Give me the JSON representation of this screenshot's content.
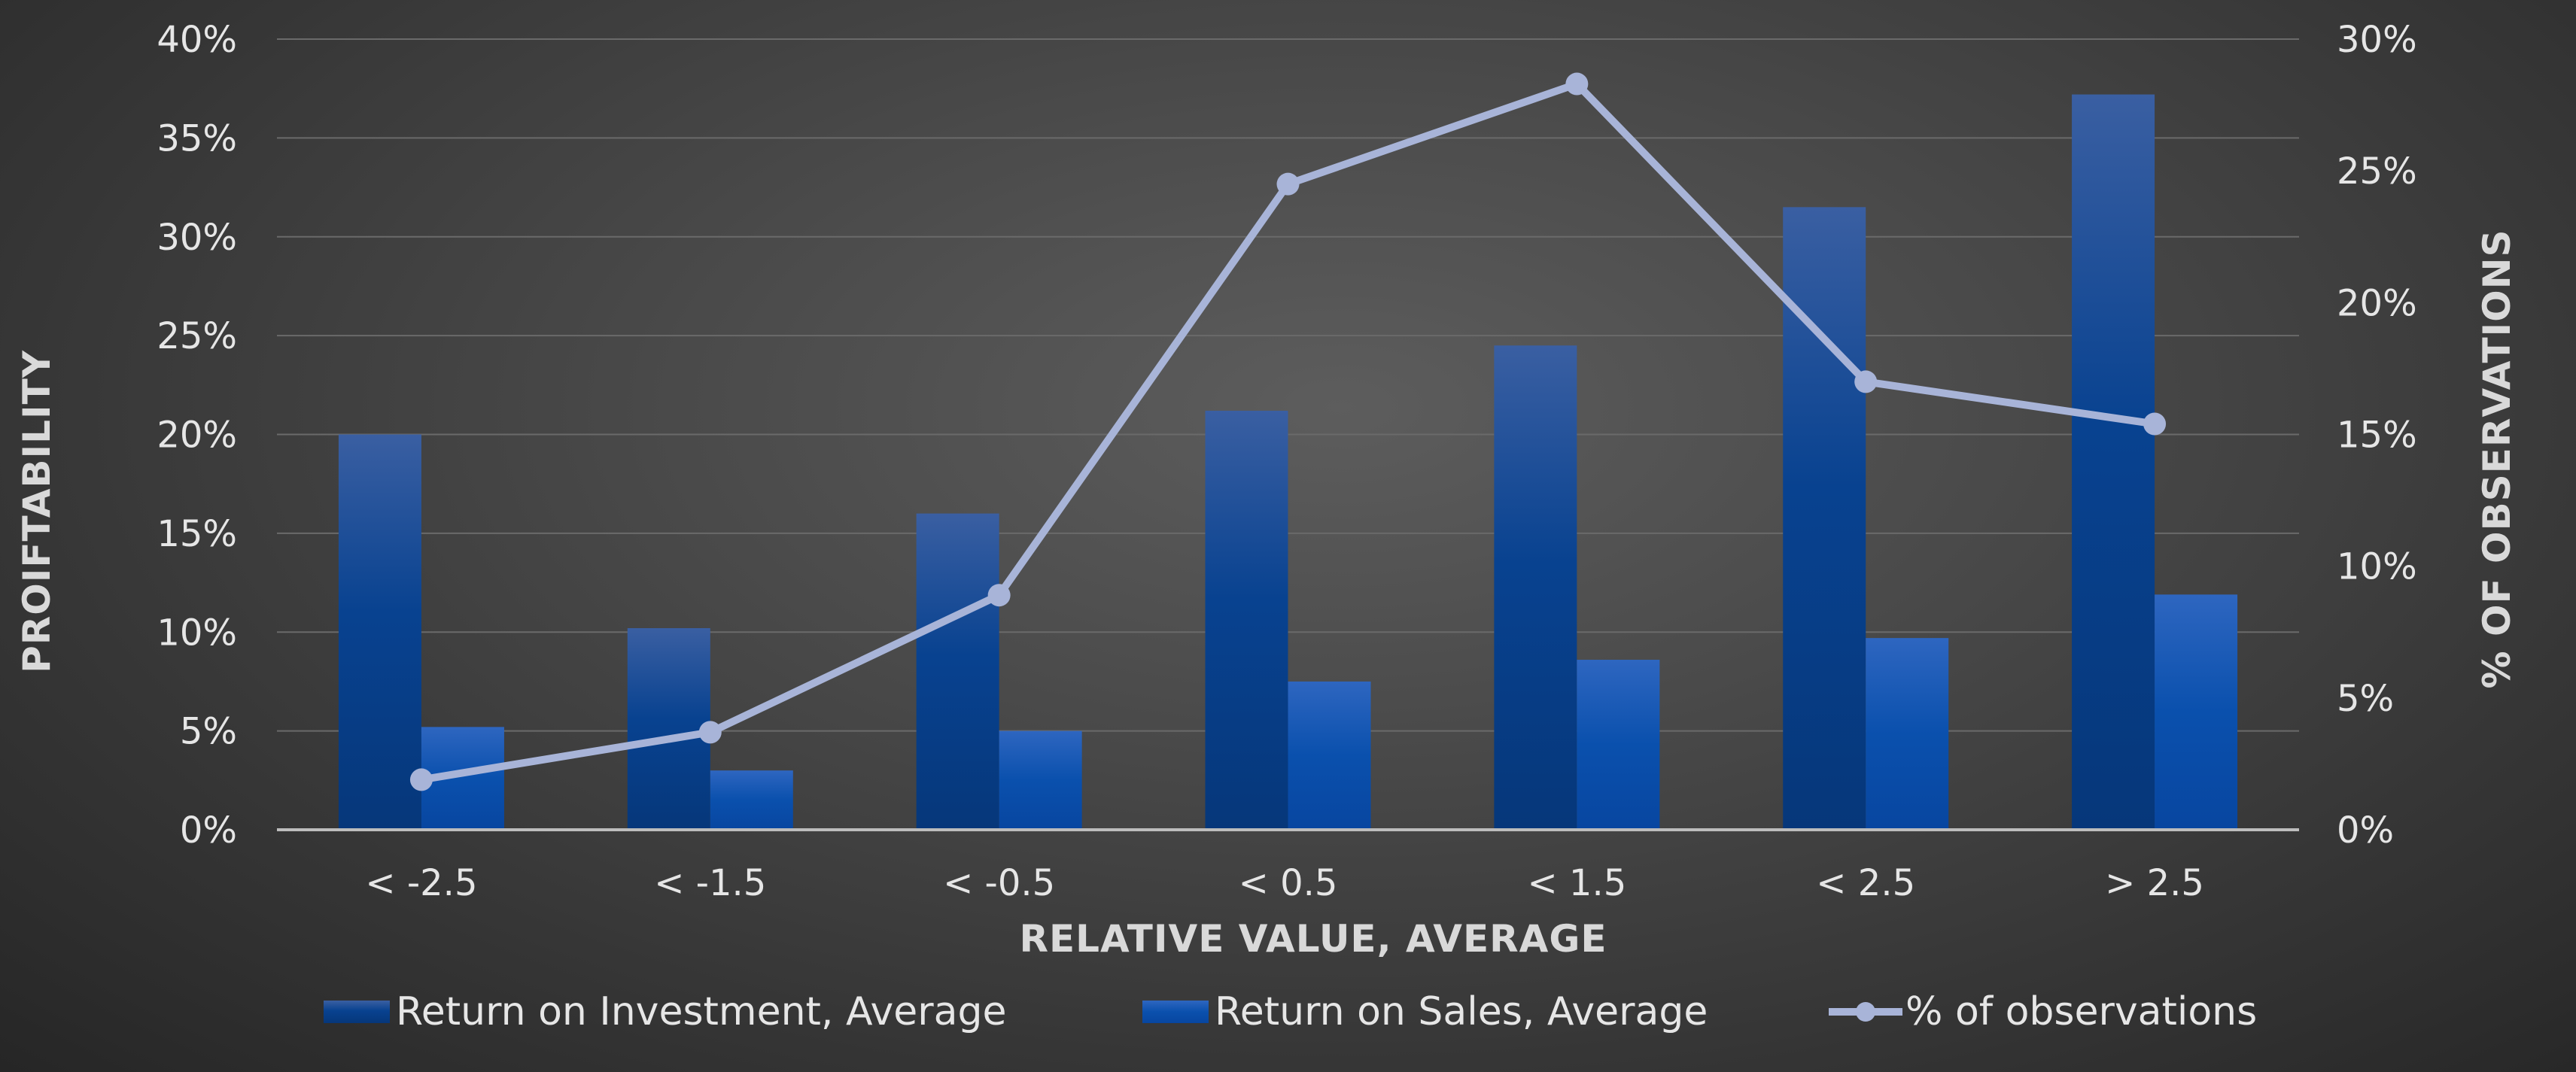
{
  "chart_data": {
    "type": "bar",
    "categories": [
      "< -2.5",
      "< -1.5",
      "< -0.5",
      "< 0.5",
      "< 1.5",
      "< 2.5",
      "> 2.5"
    ],
    "series": [
      {
        "name": "Return on Investment, Average",
        "type": "bar",
        "axis": "left",
        "values": [
          20.0,
          10.2,
          16.0,
          21.2,
          24.5,
          31.5,
          37.2
        ]
      },
      {
        "name": "Return on Sales, Average",
        "type": "bar",
        "axis": "left",
        "values": [
          5.2,
          3.0,
          5.0,
          7.5,
          8.6,
          9.7,
          11.9
        ]
      },
      {
        "name": "% of observations",
        "type": "line",
        "axis": "right",
        "values": [
          1.9,
          3.7,
          8.9,
          24.5,
          28.3,
          17.0,
          15.4
        ]
      }
    ],
    "xlabel": "RELATIVE VALUE, AVERAGE",
    "ylabel": "PROIFTABILITY",
    "y2label": "% OF OBSERVATIONS",
    "ylim": [
      0,
      40
    ],
    "y2lim": [
      0,
      30
    ],
    "yticks": [
      "0%",
      "5%",
      "10%",
      "15%",
      "20%",
      "25%",
      "30%",
      "35%",
      "40%"
    ],
    "y2ticks": [
      "0%",
      "5%",
      "10%",
      "15%",
      "20%",
      "25%",
      "30%"
    ],
    "yticks_values": [
      0,
      5,
      10,
      15,
      20,
      25,
      30,
      35,
      40
    ],
    "y2ticks_values": [
      0,
      5,
      10,
      15,
      20,
      25,
      30
    ],
    "grid": true,
    "legend": "bottom",
    "colors": {
      "roi": "#0a3f8f",
      "ros": "#0a4fb0",
      "line": "#a8b4d8",
      "grid": "#6a6a6a",
      "axis": "#bdbdbd"
    }
  }
}
